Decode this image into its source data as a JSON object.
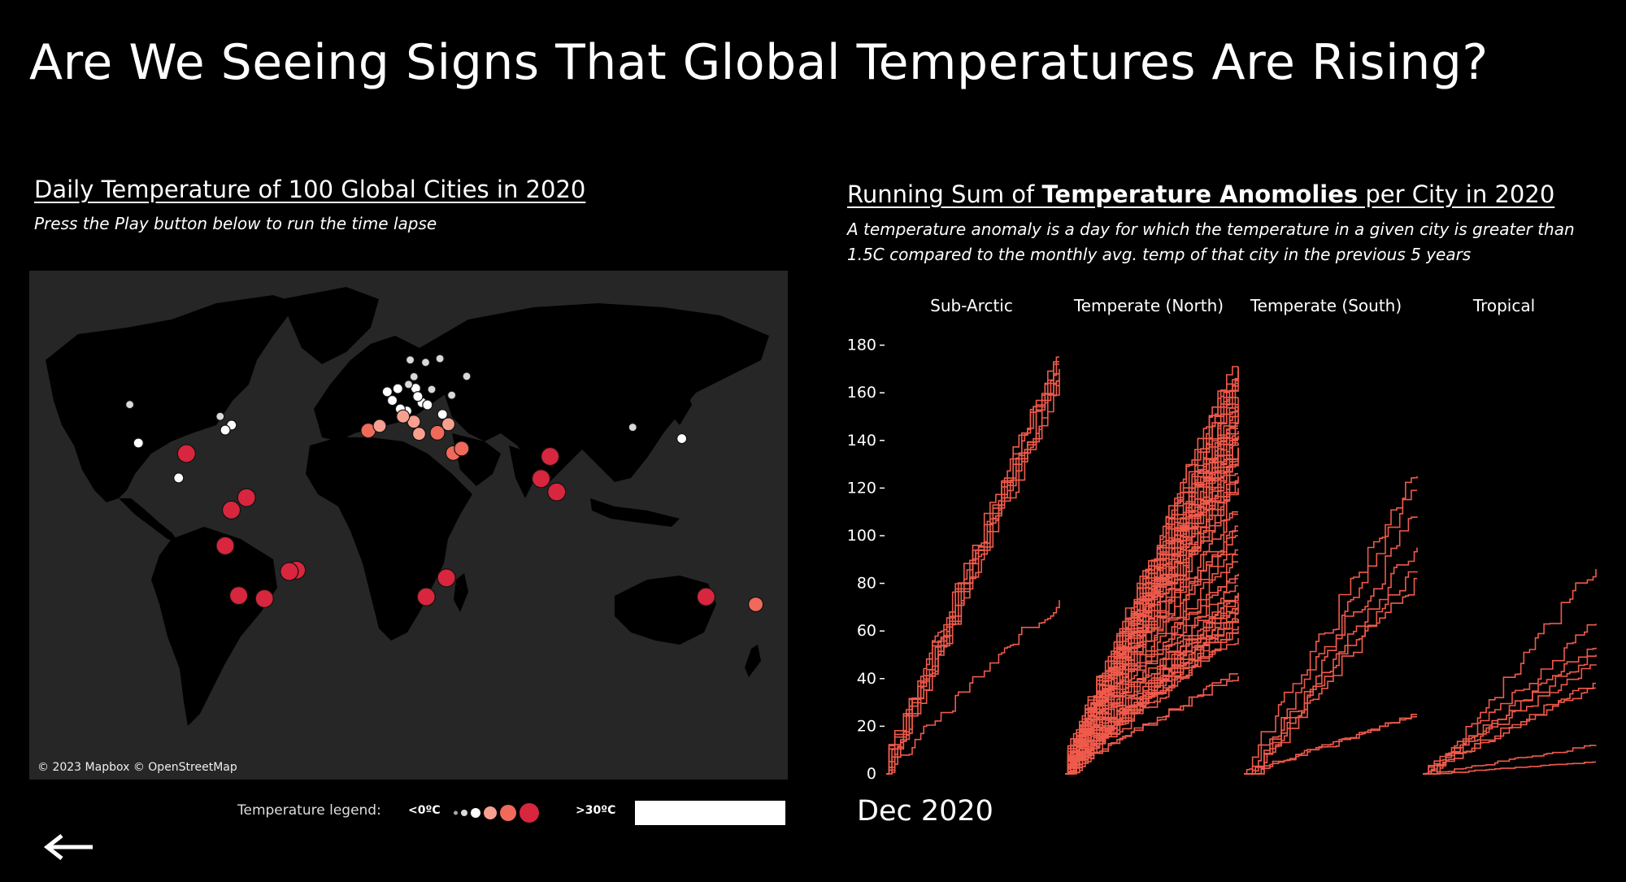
{
  "page": {
    "title": "Are We Seeing Signs That Global Temperatures Are Rising?"
  },
  "map": {
    "title": "Daily Temperature of 100 Global Cities in 2020",
    "subtitle": "Press the Play button below to run the time lapse",
    "credit": "© 2023 Mapbox © OpenStreetMap",
    "legend": {
      "label": "Temperature legend:",
      "min_label": "<0ºC",
      "max_label": ">30ºC",
      "colors": [
        "#a8a8a8",
        "#d9d9d9",
        "#ffffff",
        "#f7a090",
        "#ef6a5a",
        "#d7263d"
      ]
    },
    "colors": {
      "land": "#000000",
      "water": "#262626"
    },
    "cities_note": "city markers colored by temperature",
    "cities": [
      {
        "lon": -122.3,
        "lat": 47.6,
        "t": 0
      },
      {
        "lon": -118.2,
        "lat": 34.0,
        "t": 1
      },
      {
        "lon": -99.1,
        "lat": 19.4,
        "t": 1
      },
      {
        "lon": -95.4,
        "lat": 29.8,
        "t": 4
      },
      {
        "lon": -79.4,
        "lat": 43.7,
        "t": 0
      },
      {
        "lon": -74.0,
        "lat": 40.7,
        "t": 1
      },
      {
        "lon": -77.0,
        "lat": 38.9,
        "t": 1
      },
      {
        "lon": -66.9,
        "lat": 10.5,
        "t": 4
      },
      {
        "lon": -74.1,
        "lat": 4.7,
        "t": 4
      },
      {
        "lon": -77.0,
        "lat": -12.0,
        "t": 4
      },
      {
        "lon": -43.2,
        "lat": -22.9,
        "t": 4
      },
      {
        "lon": -46.6,
        "lat": -23.5,
        "t": 4
      },
      {
        "lon": -70.6,
        "lat": -33.4,
        "t": 4
      },
      {
        "lon": -58.4,
        "lat": -34.6,
        "t": 4
      },
      {
        "lon": -9.1,
        "lat": 38.7,
        "t": 3
      },
      {
        "lon": -3.7,
        "lat": 40.4,
        "t": 2
      },
      {
        "lon": 2.3,
        "lat": 48.9,
        "t": 1
      },
      {
        "lon": -0.1,
        "lat": 51.5,
        "t": 1
      },
      {
        "lon": 4.9,
        "lat": 52.4,
        "t": 1
      },
      {
        "lon": 13.4,
        "lat": 52.5,
        "t": 1
      },
      {
        "lon": 12.5,
        "lat": 41.9,
        "t": 2
      },
      {
        "lon": 23.7,
        "lat": 37.9,
        "t": 3
      },
      {
        "lon": 28.9,
        "lat": 41.0,
        "t": 2
      },
      {
        "lon": 37.6,
        "lat": 55.8,
        "t": 0
      },
      {
        "lon": 31.2,
        "lat": 30.0,
        "t": 3
      },
      {
        "lon": 18.4,
        "lat": -33.9,
        "t": 4
      },
      {
        "lon": 28.0,
        "lat": -26.2,
        "t": 4
      },
      {
        "lon": 72.9,
        "lat": 19.1,
        "t": 4
      },
      {
        "lon": 77.2,
        "lat": 28.6,
        "t": 4
      },
      {
        "lon": 80.3,
        "lat": 13.1,
        "t": 4
      },
      {
        "lon": 116.4,
        "lat": 39.9,
        "t": 0
      },
      {
        "lon": 139.7,
        "lat": 35.7,
        "t": 1
      },
      {
        "lon": 151.2,
        "lat": -33.9,
        "t": 4
      },
      {
        "lon": 174.8,
        "lat": -36.8,
        "t": 3
      },
      {
        "lon": 10.0,
        "lat": 53.6,
        "t": 0
      },
      {
        "lon": 16.4,
        "lat": 48.2,
        "t": 1
      },
      {
        "lon": 19.0,
        "lat": 47.5,
        "t": 1
      },
      {
        "lon": 21.0,
        "lat": 52.2,
        "t": 0
      },
      {
        "lon": 14.4,
        "lat": 50.1,
        "t": 1
      },
      {
        "lon": 9.2,
        "lat": 45.5,
        "t": 1
      },
      {
        "lon": 24.9,
        "lat": 60.2,
        "t": 0
      },
      {
        "lon": 18.1,
        "lat": 59.3,
        "t": 0
      },
      {
        "lon": 10.8,
        "lat": 59.9,
        "t": 0
      },
      {
        "lon": 12.6,
        "lat": 55.7,
        "t": 0
      },
      {
        "lon": 26.1,
        "lat": 44.4,
        "t": 1
      },
      {
        "lon": 30.5,
        "lat": 50.5,
        "t": 0
      },
      {
        "lon": 6.1,
        "lat": 46.2,
        "t": 1
      },
      {
        "lon": 7.4,
        "lat": 43.7,
        "t": 2
      },
      {
        "lon": 35.2,
        "lat": 31.8,
        "t": 3
      },
      {
        "lon": 15.0,
        "lat": 37.5,
        "t": 2
      }
    ]
  },
  "chart_data": {
    "type": "line",
    "title": "Running Sum of Temperature Anomolies per City in 2020",
    "title_parts": {
      "pre": "Running Sum of ",
      "bold": "Temperature Anomolies",
      "post": " per City in 2020"
    },
    "description": "A temperature anomaly is a day for which the temperature in a given city is greater than 1.5C compared to the monthly avg. temp of that city in the previous 5 years",
    "panels": [
      "Sub-Arctic",
      "Temperate (North)",
      "Temperate (South)",
      "Tropical"
    ],
    "x": "day of year 2020 (Jan–Dec)",
    "ylim": [
      0,
      180
    ],
    "yticks": [
      0,
      20,
      40,
      60,
      80,
      100,
      120,
      140,
      160,
      180
    ],
    "line_color": "#ef5a4b",
    "series_final_values": {
      "Sub-Arctic": [
        175,
        173,
        172,
        170,
        168,
        166,
        165,
        163,
        73
      ],
      "Temperate (North)": {
        "count": 70,
        "min": 39,
        "max": 173
      },
      "Temperate (South)": [
        125,
        119,
        108,
        95,
        85,
        82,
        25,
        24
      ],
      "Tropical": [
        86,
        63,
        53,
        50,
        46,
        38,
        36,
        12,
        5
      ]
    },
    "grid": false,
    "legend": "none"
  },
  "timeline": {
    "current_label": "Dec 2020"
  }
}
